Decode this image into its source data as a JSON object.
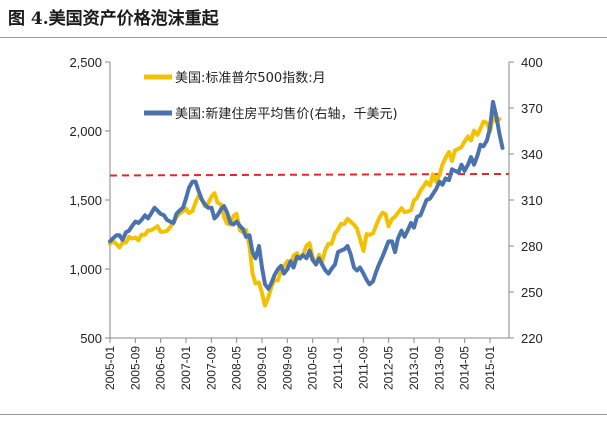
{
  "page": {
    "title": "图 4.美国资产价格泡沫重起"
  },
  "chart_data": {
    "type": "line",
    "title": "图 4.美国资产价格泡沫重起",
    "left_axis": {
      "min": 500,
      "max": 2500,
      "step": 500,
      "ticks": [
        "500",
        "1,000",
        "1,500",
        "2,000",
        "2,500"
      ]
    },
    "right_axis": {
      "min": 220,
      "max": 400,
      "step": 30,
      "ticks": [
        "220",
        "250",
        "280",
        "310",
        "340",
        "370",
        "400"
      ]
    },
    "x_ticks": [
      "2005-01",
      "2005-09",
      "2006-05",
      "2007-01",
      "2007-09",
      "2008-05",
      "2009-01",
      "2009-09",
      "2010-05",
      "2011-01",
      "2011-09",
      "2012-05",
      "2013-01",
      "2013-09",
      "2014-05",
      "2015-01"
    ],
    "x_range": [
      2005.0,
      2015.5
    ],
    "reference_line": {
      "axis": "right",
      "start": 326,
      "end": 327,
      "color": "#e8262a",
      "style": "dashed"
    },
    "series": [
      {
        "name": "美国:标准普尔500指数:月",
        "axis": "left",
        "color": "#f2c200",
        "points": [
          [
            2005.0,
            1181
          ],
          [
            2005.08,
            1203
          ],
          [
            2005.17,
            1180
          ],
          [
            2005.25,
            1156
          ],
          [
            2005.33,
            1191
          ],
          [
            2005.42,
            1191
          ],
          [
            2005.5,
            1234
          ],
          [
            2005.58,
            1220
          ],
          [
            2005.67,
            1228
          ],
          [
            2005.75,
            1207
          ],
          [
            2005.83,
            1249
          ],
          [
            2005.92,
            1248
          ],
          [
            2006.0,
            1280
          ],
          [
            2006.08,
            1280
          ],
          [
            2006.17,
            1294
          ],
          [
            2006.25,
            1310
          ],
          [
            2006.33,
            1270
          ],
          [
            2006.42,
            1270
          ],
          [
            2006.5,
            1276
          ],
          [
            2006.58,
            1303
          ],
          [
            2006.67,
            1335
          ],
          [
            2006.75,
            1377
          ],
          [
            2006.83,
            1400
          ],
          [
            2006.92,
            1418
          ],
          [
            2007.0,
            1438
          ],
          [
            2007.08,
            1406
          ],
          [
            2007.17,
            1420
          ],
          [
            2007.25,
            1482
          ],
          [
            2007.33,
            1530
          ],
          [
            2007.42,
            1503
          ],
          [
            2007.5,
            1455
          ],
          [
            2007.58,
            1473
          ],
          [
            2007.67,
            1526
          ],
          [
            2007.75,
            1549
          ],
          [
            2007.83,
            1481
          ],
          [
            2007.92,
            1468
          ],
          [
            2008.0,
            1378
          ],
          [
            2008.08,
            1330
          ],
          [
            2008.17,
            1322
          ],
          [
            2008.25,
            1385
          ],
          [
            2008.33,
            1400
          ],
          [
            2008.42,
            1280
          ],
          [
            2008.5,
            1267
          ],
          [
            2008.58,
            1283
          ],
          [
            2008.67,
            1165
          ],
          [
            2008.75,
            969
          ],
          [
            2008.83,
            896
          ],
          [
            2008.92,
            903
          ],
          [
            2009.0,
            826
          ],
          [
            2009.08,
            735
          ],
          [
            2009.17,
            798
          ],
          [
            2009.25,
            873
          ],
          [
            2009.33,
            919
          ],
          [
            2009.42,
            919
          ],
          [
            2009.5,
            987
          ],
          [
            2009.58,
            1021
          ],
          [
            2009.67,
            1057
          ],
          [
            2009.75,
            1036
          ],
          [
            2009.83,
            1096
          ],
          [
            2009.92,
            1115
          ],
          [
            2010.0,
            1074
          ],
          [
            2010.08,
            1104
          ],
          [
            2010.17,
            1169
          ],
          [
            2010.25,
            1187
          ],
          [
            2010.33,
            1089
          ],
          [
            2010.42,
            1031
          ],
          [
            2010.5,
            1102
          ],
          [
            2010.58,
            1049
          ],
          [
            2010.67,
            1141
          ],
          [
            2010.75,
            1183
          ],
          [
            2010.83,
            1181
          ],
          [
            2010.92,
            1258
          ],
          [
            2011.0,
            1286
          ],
          [
            2011.08,
            1327
          ],
          [
            2011.17,
            1326
          ],
          [
            2011.25,
            1364
          ],
          [
            2011.33,
            1345
          ],
          [
            2011.42,
            1321
          ],
          [
            2011.5,
            1292
          ],
          [
            2011.58,
            1219
          ],
          [
            2011.67,
            1131
          ],
          [
            2011.75,
            1253
          ],
          [
            2011.83,
            1247
          ],
          [
            2011.92,
            1258
          ],
          [
            2012.0,
            1312
          ],
          [
            2012.08,
            1366
          ],
          [
            2012.17,
            1408
          ],
          [
            2012.25,
            1398
          ],
          [
            2012.33,
            1310
          ],
          [
            2012.42,
            1362
          ],
          [
            2012.5,
            1379
          ],
          [
            2012.58,
            1407
          ],
          [
            2012.67,
            1441
          ],
          [
            2012.75,
            1412
          ],
          [
            2012.83,
            1416
          ],
          [
            2012.92,
            1426
          ],
          [
            2013.0,
            1498
          ],
          [
            2013.08,
            1515
          ],
          [
            2013.17,
            1569
          ],
          [
            2013.25,
            1598
          ],
          [
            2013.33,
            1631
          ],
          [
            2013.42,
            1606
          ],
          [
            2013.5,
            1686
          ],
          [
            2013.58,
            1633
          ],
          [
            2013.67,
            1682
          ],
          [
            2013.75,
            1757
          ],
          [
            2013.83,
            1806
          ],
          [
            2013.92,
            1848
          ],
          [
            2014.0,
            1783
          ],
          [
            2014.08,
            1859
          ],
          [
            2014.17,
            1872
          ],
          [
            2014.25,
            1884
          ],
          [
            2014.33,
            1924
          ],
          [
            2014.42,
            1960
          ],
          [
            2014.5,
            1931
          ],
          [
            2014.58,
            2003
          ],
          [
            2014.67,
            1972
          ],
          [
            2014.75,
            2018
          ],
          [
            2014.83,
            2068
          ],
          [
            2014.92,
            2059
          ],
          [
            2015.0,
            1995
          ],
          [
            2015.08,
            2105
          ],
          [
            2015.17,
            2068
          ],
          [
            2015.25,
            2086
          ]
        ]
      },
      {
        "name": "美国:新建住房平均售价(右轴，千美元)",
        "axis": "right",
        "color": "#4a72ae",
        "points": [
          [
            2005.0,
            283
          ],
          [
            2005.08,
            285
          ],
          [
            2005.17,
            287
          ],
          [
            2005.25,
            287
          ],
          [
            2005.33,
            284
          ],
          [
            2005.42,
            289
          ],
          [
            2005.5,
            290
          ],
          [
            2005.58,
            293
          ],
          [
            2005.67,
            296
          ],
          [
            2005.75,
            295
          ],
          [
            2005.83,
            297
          ],
          [
            2005.92,
            300
          ],
          [
            2006.0,
            298
          ],
          [
            2006.08,
            301
          ],
          [
            2006.17,
            305
          ],
          [
            2006.25,
            303
          ],
          [
            2006.33,
            301
          ],
          [
            2006.42,
            300
          ],
          [
            2006.5,
            297
          ],
          [
            2006.58,
            296
          ],
          [
            2006.67,
            295
          ],
          [
            2006.75,
            301
          ],
          [
            2006.83,
            303
          ],
          [
            2006.92,
            305
          ],
          [
            2007.0,
            311
          ],
          [
            2007.08,
            318
          ],
          [
            2007.17,
            322
          ],
          [
            2007.25,
            322
          ],
          [
            2007.33,
            316
          ],
          [
            2007.42,
            310
          ],
          [
            2007.5,
            307
          ],
          [
            2007.58,
            305
          ],
          [
            2007.67,
            305
          ],
          [
            2007.75,
            298
          ],
          [
            2007.83,
            300
          ],
          [
            2007.92,
            304
          ],
          [
            2008.0,
            306
          ],
          [
            2008.08,
            302
          ],
          [
            2008.17,
            295
          ],
          [
            2008.25,
            294
          ],
          [
            2008.33,
            296
          ],
          [
            2008.42,
            293
          ],
          [
            2008.5,
            291
          ],
          [
            2008.58,
            286
          ],
          [
            2008.67,
            287
          ],
          [
            2008.75,
            276
          ],
          [
            2008.83,
            272
          ],
          [
            2008.92,
            280
          ],
          [
            2009.0,
            266
          ],
          [
            2009.08,
            255
          ],
          [
            2009.17,
            252
          ],
          [
            2009.25,
            256
          ],
          [
            2009.33,
            261
          ],
          [
            2009.42,
            265
          ],
          [
            2009.5,
            267
          ],
          [
            2009.58,
            262
          ],
          [
            2009.67,
            265
          ],
          [
            2009.75,
            270
          ],
          [
            2009.83,
            266
          ],
          [
            2009.92,
            273
          ],
          [
            2010.0,
            272
          ],
          [
            2010.08,
            274
          ],
          [
            2010.17,
            272
          ],
          [
            2010.25,
            277
          ],
          [
            2010.33,
            271
          ],
          [
            2010.42,
            268
          ],
          [
            2010.5,
            272
          ],
          [
            2010.58,
            268
          ],
          [
            2010.67,
            264
          ],
          [
            2010.75,
            262
          ],
          [
            2010.83,
            265
          ],
          [
            2010.92,
            268
          ],
          [
            2011.0,
            276
          ],
          [
            2011.08,
            277
          ],
          [
            2011.17,
            278
          ],
          [
            2011.25,
            280
          ],
          [
            2011.33,
            275
          ],
          [
            2011.42,
            266
          ],
          [
            2011.5,
            264
          ],
          [
            2011.58,
            266
          ],
          [
            2011.67,
            262
          ],
          [
            2011.75,
            258
          ],
          [
            2011.83,
            255
          ],
          [
            2011.92,
            257
          ],
          [
            2012.0,
            263
          ],
          [
            2012.08,
            268
          ],
          [
            2012.17,
            273
          ],
          [
            2012.25,
            278
          ],
          [
            2012.33,
            283
          ],
          [
            2012.42,
            283
          ],
          [
            2012.5,
            276
          ],
          [
            2012.58,
            285
          ],
          [
            2012.67,
            290
          ],
          [
            2012.75,
            286
          ],
          [
            2012.83,
            290
          ],
          [
            2012.92,
            295
          ],
          [
            2013.0,
            292
          ],
          [
            2013.08,
            299
          ],
          [
            2013.17,
            300
          ],
          [
            2013.25,
            305
          ],
          [
            2013.33,
            310
          ],
          [
            2013.42,
            311
          ],
          [
            2013.5,
            314
          ],
          [
            2013.58,
            317
          ],
          [
            2013.67,
            322
          ],
          [
            2013.75,
            320
          ],
          [
            2013.83,
            324
          ],
          [
            2013.92,
            323
          ],
          [
            2014.0,
            330
          ],
          [
            2014.08,
            329
          ],
          [
            2014.17,
            328
          ],
          [
            2014.25,
            333
          ],
          [
            2014.33,
            329
          ],
          [
            2014.42,
            333
          ],
          [
            2014.5,
            338
          ],
          [
            2014.58,
            333
          ],
          [
            2014.67,
            339
          ],
          [
            2014.75,
            346
          ],
          [
            2014.83,
            345
          ],
          [
            2014.92,
            349
          ],
          [
            2015.0,
            357
          ],
          [
            2015.08,
            374
          ],
          [
            2015.17,
            364
          ],
          [
            2015.25,
            353
          ],
          [
            2015.33,
            344
          ]
        ]
      }
    ]
  }
}
